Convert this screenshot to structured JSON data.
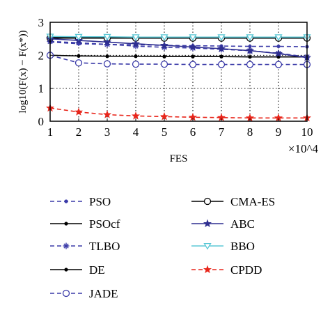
{
  "chart_data": {
    "type": "line",
    "title": "",
    "xlabel": "FES",
    "ylabel": "log10(F(x) − F(x*))",
    "x_multiplier": "×10^4",
    "x": [
      1,
      2,
      3,
      4,
      5,
      6,
      7,
      8,
      9,
      10
    ],
    "xlim": [
      1,
      10
    ],
    "ylim": [
      0,
      3
    ],
    "xticks": [
      "1",
      "2",
      "3",
      "4",
      "5",
      "6",
      "7",
      "8",
      "9",
      "10"
    ],
    "yticks": [
      "0",
      "1",
      "2",
      "3"
    ],
    "grid": true,
    "legend_position": "below",
    "series": [
      {
        "name": "PSO",
        "color": "#3a3aa8",
        "dash": "dashed",
        "marker": "dot",
        "values": [
          2.4,
          2.35,
          2.33,
          2.32,
          2.3,
          2.29,
          2.28,
          2.27,
          2.27,
          2.26
        ]
      },
      {
        "name": "PSOcf",
        "color": "#000000",
        "dash": "solid",
        "marker": "dot",
        "values": [
          2.55,
          2.54,
          2.54,
          2.53,
          2.53,
          2.53,
          2.53,
          2.53,
          2.53,
          2.53
        ]
      },
      {
        "name": "TLBO",
        "color": "#3a3aa8",
        "dash": "dashed",
        "marker": "asterisk",
        "values": [
          2.42,
          2.38,
          2.33,
          2.28,
          2.24,
          2.22,
          2.18,
          2.14,
          2.06,
          1.95
        ]
      },
      {
        "name": "DE",
        "color": "#000000",
        "dash": "solid",
        "marker": "dot",
        "values": [
          2.0,
          1.98,
          1.97,
          1.97,
          1.96,
          1.96,
          1.96,
          1.95,
          1.95,
          1.95
        ]
      },
      {
        "name": "JADE",
        "color": "#3a3aa8",
        "dash": "dashed",
        "marker": "circle",
        "values": [
          2.0,
          1.77,
          1.74,
          1.73,
          1.73,
          1.72,
          1.72,
          1.72,
          1.72,
          1.72
        ]
      },
      {
        "name": "CMA-ES",
        "color": "#000000",
        "dash": "solid",
        "marker": "circle",
        "values": [
          2.52,
          2.52,
          2.52,
          2.52,
          2.52,
          2.52,
          2.52,
          2.52,
          2.52,
          2.52
        ]
      },
      {
        "name": "ABC",
        "color": "#2e2e90",
        "dash": "solid",
        "marker": "star",
        "values": [
          2.5,
          2.45,
          2.4,
          2.35,
          2.3,
          2.25,
          2.2,
          2.14,
          2.05,
          1.93
        ]
      },
      {
        "name": "BBO",
        "color": "#5bc8d6",
        "dash": "solid",
        "marker": "triangle-down",
        "values": [
          2.57,
          2.56,
          2.56,
          2.55,
          2.55,
          2.55,
          2.55,
          2.55,
          2.55,
          2.55
        ]
      },
      {
        "name": "CPDD",
        "color": "#e8251a",
        "dash": "dashed",
        "marker": "star",
        "values": [
          0.4,
          0.28,
          0.2,
          0.16,
          0.14,
          0.12,
          0.11,
          0.1,
          0.1,
          0.1
        ]
      }
    ]
  }
}
